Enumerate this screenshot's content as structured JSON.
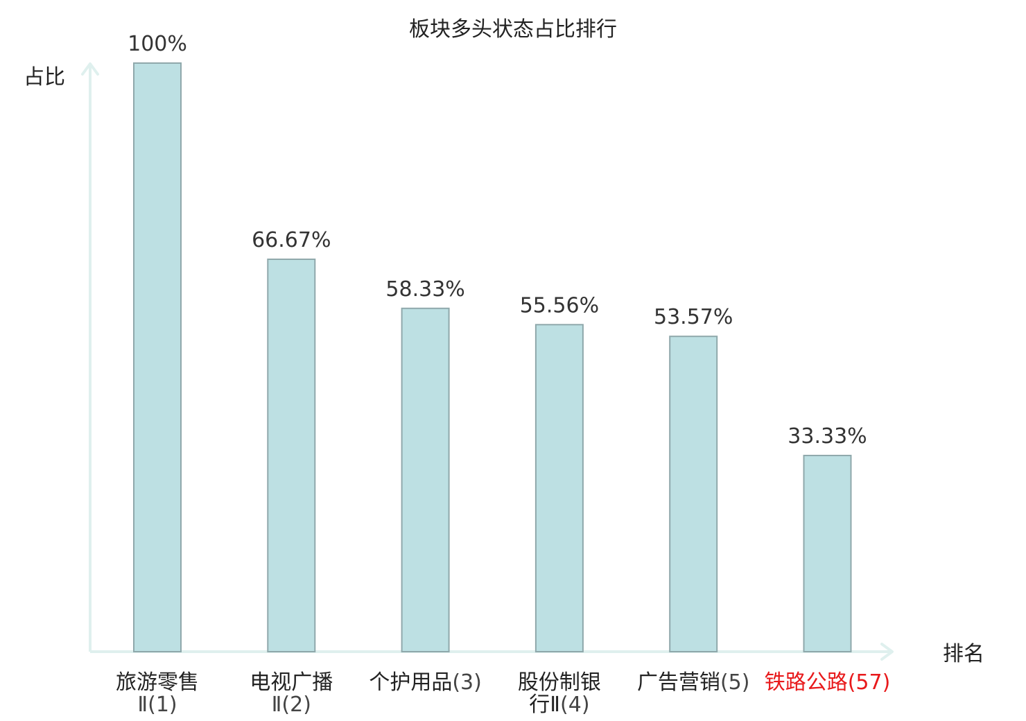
{
  "chart_data": {
    "type": "bar",
    "title": "板块多头状态占比排行",
    "ylabel": "占比",
    "xlabel": "排名",
    "ylim": [
      0,
      100
    ],
    "categories": [
      {
        "name_lines": [
          "旅游零售",
          "Ⅱ"
        ],
        "rank": "(1)",
        "highlight": false
      },
      {
        "name_lines": [
          "电视广播",
          "Ⅱ"
        ],
        "rank": "(2)",
        "highlight": false
      },
      {
        "name_lines": [
          "个护用品"
        ],
        "rank": "(3)",
        "highlight": false
      },
      {
        "name_lines": [
          "股份制银",
          "行Ⅱ"
        ],
        "rank": "(4)",
        "highlight": false
      },
      {
        "name_lines": [
          "广告营销"
        ],
        "rank": "(5)",
        "highlight": false
      },
      {
        "name_lines": [
          "铁路公路"
        ],
        "rank": "(57)",
        "highlight": true
      }
    ],
    "values": [
      100,
      66.67,
      58.33,
      55.56,
      53.57,
      33.33
    ],
    "value_labels": [
      "100%",
      "66.67%",
      "58.33%",
      "55.56%",
      "53.57%",
      "33.33%"
    ],
    "grid": false,
    "legend": "none",
    "colors": {
      "bar_fill": "#bde0e3",
      "bar_stroke": "#8fa8ab",
      "axis": "#dff0ee",
      "label_text": "#222222",
      "rank_text": "#444444",
      "highlight_text": "#e8191b"
    }
  }
}
